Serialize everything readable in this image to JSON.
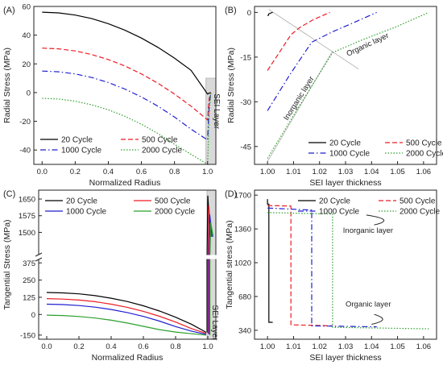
{
  "series_styles": [
    {
      "name": "20 Cycle",
      "color": "#000000",
      "dash": "solid"
    },
    {
      "name": "500 Cycle",
      "color": "#ee1c24",
      "dash": "dashed"
    },
    {
      "name": "1000 Cycle",
      "color": "#1f1fd0",
      "dash": "dashdot"
    },
    {
      "name": "2000 Cycle",
      "color": "#2ca02c",
      "dash": "dotted"
    }
  ],
  "chart_data": [
    {
      "panel": "(A)",
      "type": "line",
      "xlabel": "Normalized Radius",
      "ylabel": "Radial Stress (MPa)",
      "xlim": [
        -0.05,
        1.05
      ],
      "ylim": [
        -50,
        60
      ],
      "xticks": [
        0.0,
        0.2,
        0.4,
        0.6,
        0.8,
        1.0
      ],
      "xtick_labels": [
        "0.0",
        "0.2",
        "0.4",
        "0.6",
        "0.8",
        "1.0"
      ],
      "yticks": [
        -40,
        -20,
        0,
        20,
        40,
        60
      ],
      "ytick_labels": [
        "-40",
        "-20",
        "0",
        "20",
        "40",
        "60"
      ],
      "shaded_region": {
        "x": [
          0.99,
          1.05
        ],
        "label": "SEI Layer"
      },
      "legend_placement": "bottom-left",
      "series": [
        {
          "name": "20 Cycle",
          "x": [
            0.0,
            0.1,
            0.2,
            0.3,
            0.4,
            0.5,
            0.6,
            0.7,
            0.8,
            0.9,
            1.0,
            1.005,
            1.01,
            1.02
          ],
          "y": [
            56,
            55.5,
            54,
            51.5,
            48,
            43.5,
            38,
            31.5,
            24,
            15.5,
            -1,
            -0.7,
            -0.3,
            0
          ]
        },
        {
          "name": "500 Cycle",
          "x": [
            0.0,
            0.1,
            0.2,
            0.3,
            0.4,
            0.5,
            0.6,
            0.7,
            0.8,
            0.9,
            1.0,
            1.005,
            1.01,
            1.02
          ],
          "y": [
            31,
            30.5,
            29,
            26.5,
            23,
            18.5,
            13,
            6.5,
            -1,
            -9.5,
            -19,
            -10,
            -4,
            0
          ]
        },
        {
          "name": "1000 Cycle",
          "x": [
            0.0,
            0.1,
            0.2,
            0.3,
            0.4,
            0.5,
            0.6,
            0.7,
            0.8,
            0.9,
            1.0,
            1.005,
            1.01,
            1.02
          ],
          "y": [
            15,
            14.5,
            13,
            10.5,
            7,
            2.5,
            -3,
            -9.5,
            -17,
            -25.5,
            -33,
            -20,
            -8,
            0
          ]
        },
        {
          "name": "2000 Cycle",
          "x": [
            0.0,
            0.1,
            0.2,
            0.3,
            0.4,
            0.5,
            0.6,
            0.7,
            0.8,
            0.9,
            1.0,
            1.005,
            1.01,
            1.02
          ],
          "y": [
            -4,
            -4.5,
            -6,
            -8.5,
            -12,
            -16.5,
            -22,
            -28.5,
            -36,
            -43,
            -50,
            -33,
            -13,
            0
          ]
        }
      ]
    },
    {
      "panel": "(B)",
      "type": "line",
      "xlabel": "SEI layer thickness",
      "ylabel": "Radial Stress (MPa)",
      "xlim": [
        0.995,
        1.065
      ],
      "ylim": [
        -51,
        2
      ],
      "xticks": [
        1.0,
        1.01,
        1.02,
        1.03,
        1.04,
        1.05,
        1.06
      ],
      "xtick_labels": [
        "1.00",
        "1.01",
        "1.02",
        "1.03",
        "1.04",
        "1.05",
        "1.06"
      ],
      "yticks": [
        -45,
        -30,
        -15,
        0
      ],
      "ytick_labels": [
        "-45",
        "-30",
        "-15",
        "0"
      ],
      "legend_placement": "bottom-right",
      "annotations": [
        "Organic layer",
        "Inorganic layer"
      ],
      "series": [
        {
          "name": "20 Cycle",
          "x": [
            1.0,
            1.0003,
            1.0005,
            1.001,
            1.0015,
            1.002
          ],
          "y": [
            -1,
            -1,
            -0.5,
            -0.3,
            -0.1,
            0
          ]
        },
        {
          "name": "500 Cycle",
          "x": [
            1.0,
            1.0045,
            1.009,
            1.0125,
            1.0175,
            1.024
          ],
          "y": [
            -19.5,
            -13.5,
            -7.5,
            -5,
            -2.5,
            0
          ]
        },
        {
          "name": "1000 Cycle",
          "x": [
            1.0,
            1.0085,
            1.017,
            1.025,
            1.033,
            1.042
          ],
          "y": [
            -33,
            -21,
            -10,
            -6.5,
            -3.5,
            0
          ]
        },
        {
          "name": "2000 Cycle",
          "x": [
            1.0,
            1.0125,
            1.025,
            1.037,
            1.049,
            1.062
          ],
          "y": [
            -49,
            -31,
            -13.5,
            -9,
            -5,
            0
          ]
        }
      ]
    },
    {
      "panel": "(C)",
      "type": "line",
      "broken_axis": true,
      "xlabel": "Normalized Radius",
      "ylabel": "Tangential Stress (MPa)",
      "xlim": [
        -0.05,
        1.05
      ],
      "ylim_upper": [
        1400,
        1690
      ],
      "ylim_lower": [
        -180,
        400
      ],
      "xticks": [
        0.0,
        0.2,
        0.4,
        0.6,
        0.8,
        1.0
      ],
      "xtick_labels": [
        "0.0",
        "0.2",
        "0.4",
        "0.6",
        "0.8",
        "1.0"
      ],
      "yticks": [
        -150,
        0,
        125,
        250,
        375,
        1500,
        1575,
        1650
      ],
      "ytick_labels": [
        "-150",
        "0",
        "125",
        "250",
        "375",
        "1500",
        "1575",
        "1650"
      ],
      "shaded_region": {
        "x": [
          0.995,
          1.05
        ],
        "label": "SEI Layer"
      },
      "legend_placement": "top-left",
      "series": [
        {
          "name": "20 Cycle",
          "color": "#000000",
          "x": [
            0.0,
            0.1,
            0.2,
            0.3,
            0.4,
            0.5,
            0.6,
            0.7,
            0.8,
            0.9,
            0.99
          ],
          "y": [
            160,
            157,
            150,
            137,
            118,
            94,
            63,
            25,
            -20,
            -72,
            -130
          ],
          "sei_top": 1665
        },
        {
          "name": "500 Cycle",
          "color": "#ee1c24",
          "x": [
            0.0,
            0.1,
            0.2,
            0.3,
            0.4,
            0.5,
            0.6,
            0.7,
            0.8,
            0.9,
            0.99
          ],
          "y": [
            115,
            112,
            105,
            93,
            75,
            52,
            23,
            -13,
            -55,
            -103,
            -138
          ],
          "sei_top": 1620
        },
        {
          "name": "1000 Cycle",
          "color": "#1f1fd0",
          "x": [
            0.0,
            0.1,
            0.2,
            0.3,
            0.4,
            0.5,
            0.6,
            0.7,
            0.8,
            0.9,
            0.99
          ],
          "y": [
            75,
            72,
            65,
            53,
            36,
            14,
            -14,
            -48,
            -88,
            -122,
            -145
          ],
          "sei_top": 1580
        },
        {
          "name": "2000 Cycle",
          "color": "#2ca02c",
          "x": [
            0.0,
            0.1,
            0.2,
            0.3,
            0.4,
            0.5,
            0.6,
            0.7,
            0.8,
            0.9,
            0.99
          ],
          "y": [
            -5,
            -8,
            -15,
            -26,
            -42,
            -62,
            -86,
            -110,
            -128,
            -140,
            -150
          ],
          "sei_top": 1545
        }
      ]
    },
    {
      "panel": "(D)",
      "type": "line",
      "xlabel": "SEI layer thickness",
      "ylabel": "Tangential stress (MPa)",
      "xlim": [
        0.995,
        1.065
      ],
      "ylim": [
        250,
        1750
      ],
      "xticks": [
        1.0,
        1.01,
        1.02,
        1.03,
        1.04,
        1.05,
        1.06
      ],
      "xtick_labels": [
        "1.00",
        "1.01",
        "1.02",
        "1.03",
        "1.04",
        "1.05",
        "1.06"
      ],
      "yticks": [
        340,
        680,
        1020,
        1360,
        1700
      ],
      "ytick_labels": [
        "340",
        "680",
        "1020",
        "1360",
        "1700"
      ],
      "legend_placement": "top-right",
      "annotations": [
        "Inorganic layer",
        "Organic layer"
      ],
      "series": [
        {
          "name": "20 Cycle",
          "x": [
            1.0,
            1.0,
            1.0005,
            1.0005,
            1.002
          ],
          "y": [
            1660,
            1610,
            1610,
            420,
            420
          ]
        },
        {
          "name": "500 Cycle",
          "x": [
            1.0,
            1.009,
            1.009,
            1.025
          ],
          "y": [
            1595,
            1590,
            395,
            385
          ]
        },
        {
          "name": "1000 Cycle",
          "x": [
            1.0,
            1.017,
            1.017,
            1.042
          ],
          "y": [
            1570,
            1550,
            385,
            375
          ]
        },
        {
          "name": "2000 Cycle",
          "x": [
            1.0,
            1.025,
            1.025,
            1.062
          ],
          "y": [
            1525,
            1510,
            370,
            355
          ]
        }
      ]
    }
  ]
}
